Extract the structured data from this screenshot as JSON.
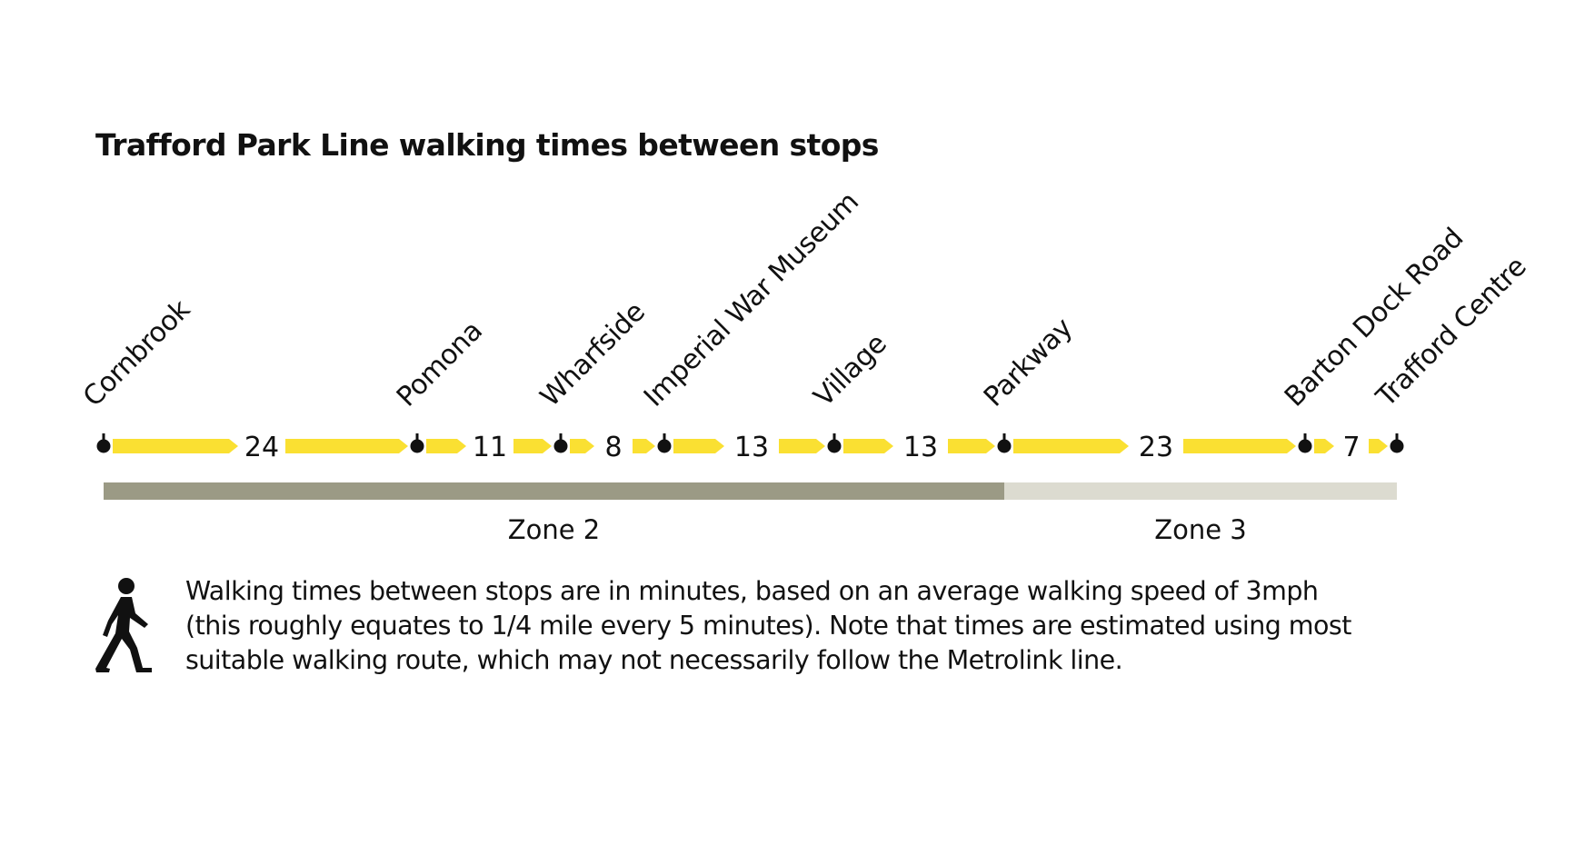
{
  "title": "Trafford Park Line walking times between stops",
  "colors": {
    "route": "#fae032",
    "stop": "#111111",
    "zone2": "#9b9a85",
    "zone3": "#dcdbd0"
  },
  "stops": [
    {
      "name": "Cornbrook"
    },
    {
      "name": "Pomona"
    },
    {
      "name": "Wharfside"
    },
    {
      "name": "Imperial War Museum"
    },
    {
      "name": "Village"
    },
    {
      "name": "Parkway"
    },
    {
      "name": "Barton Dock Road"
    },
    {
      "name": "Trafford Centre"
    }
  ],
  "walking_times": [
    "24",
    "11",
    "8",
    "13",
    "13",
    "23",
    "7"
  ],
  "zones": [
    {
      "label": "Zone 2",
      "from_stop": 0,
      "to_stop": 5
    },
    {
      "label": "Zone 3",
      "from_stop": 5,
      "to_stop": 7
    }
  ],
  "note": {
    "icon": "walking-person-icon",
    "text": "Walking times between stops are in minutes, based on an average walking speed of 3mph\n(this roughly equates to 1/4 mile every 5 minutes). Note that times are estimated using most\nsuitable walking route, which may not necessarily follow the Metrolink line."
  }
}
